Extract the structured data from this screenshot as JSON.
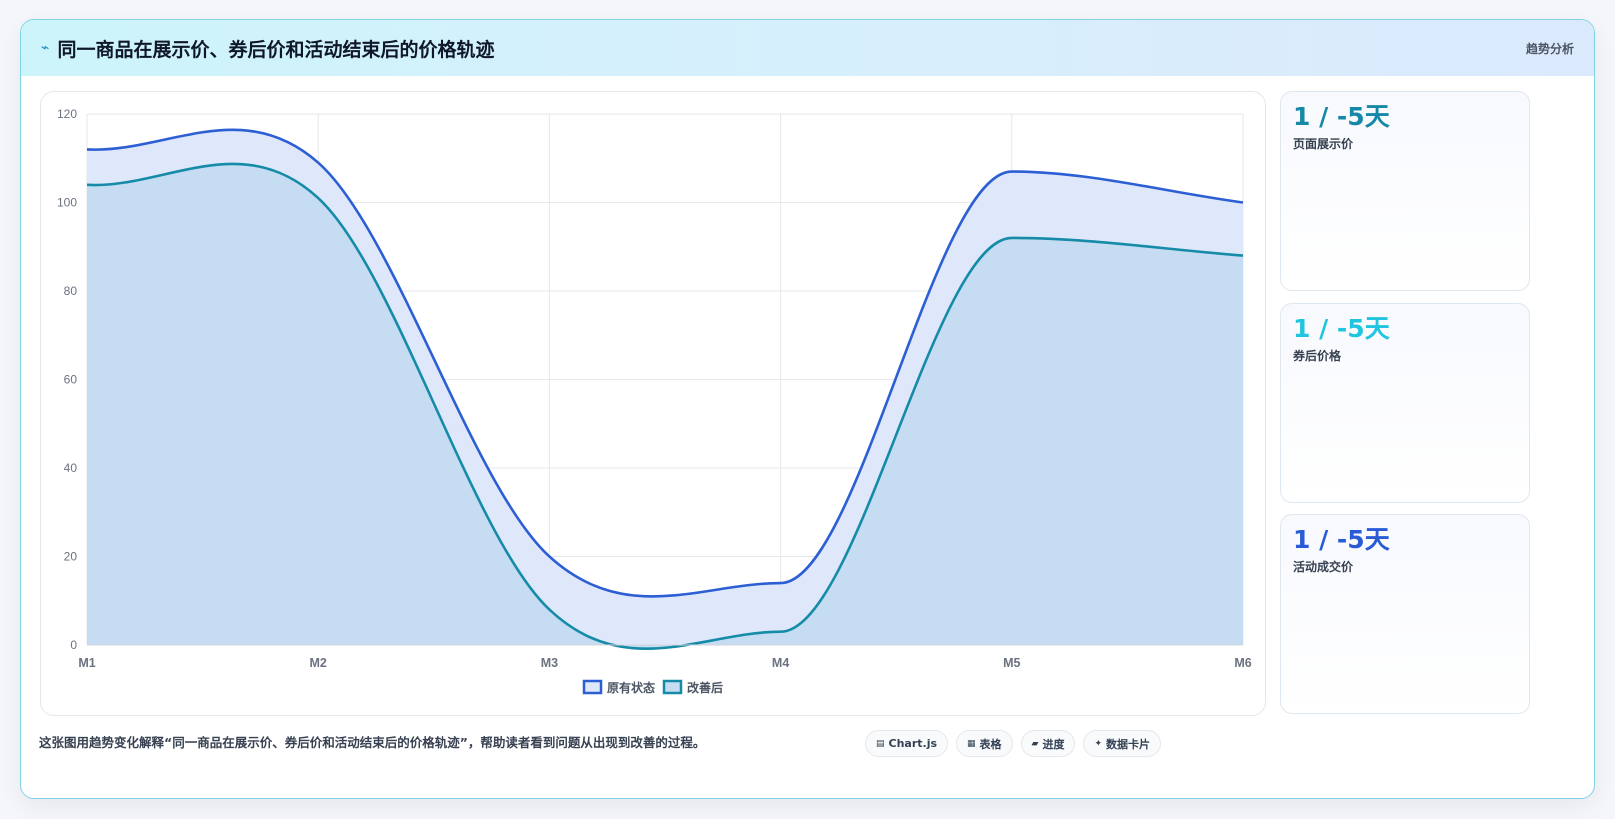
{
  "header": {
    "icon": "bolt-icon",
    "title": "同一商品在展示价、券后价和活动结束后的价格轨迹",
    "tag": "趋势分析"
  },
  "side_cards": [
    {
      "value": "1 / -5天",
      "label": "页面展示价",
      "color": "#1789a8"
    },
    {
      "value": "1 / -5天",
      "label": "券后价格",
      "color": "#22c5e0"
    },
    {
      "value": "1 / -5天",
      "label": "活动成交价",
      "color": "#2a5bd7"
    }
  ],
  "footer": {
    "description": "这张图用趋势变化解释“同一商品在展示价、券后价和活动结束后的价格轨迹”，帮助读者看到问题从出现到改善的过程。",
    "chips": [
      {
        "icon": "chart-icon",
        "label": "Chart.js"
      },
      {
        "icon": "table-icon",
        "label": "表格"
      },
      {
        "icon": "progress-icon",
        "label": "进度"
      },
      {
        "icon": "sparkle-icon",
        "label": "数据卡片"
      }
    ]
  },
  "chart_data": {
    "type": "area",
    "categories": [
      "M1",
      "M2",
      "M3",
      "M4",
      "M5",
      "M6"
    ],
    "ylim": [
      0,
      120
    ],
    "yticks": [
      0,
      20,
      40,
      60,
      80,
      100,
      120
    ],
    "grid": true,
    "legend_position": "bottom",
    "series": [
      {
        "name": "原有状态",
        "values": [
          112,
          109,
          20,
          14,
          107,
          100
        ],
        "color": "#2b5fd3",
        "fill": "#dfe8fb"
      },
      {
        "name": "改善后",
        "values": [
          104,
          101,
          8,
          3,
          92,
          88
        ],
        "color": "#168ba8",
        "fill": "#c5dcf2"
      }
    ]
  }
}
